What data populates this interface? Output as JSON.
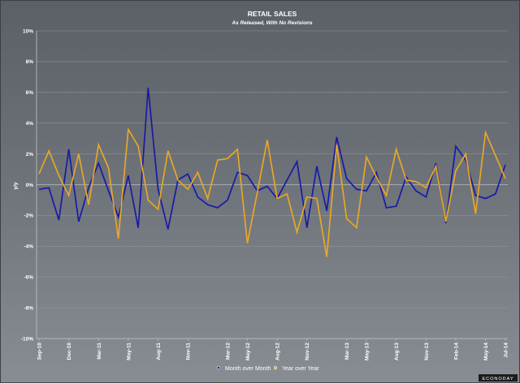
{
  "chart_data": {
    "type": "line",
    "title": "RETAIL SALES",
    "subtitle": "As Released, With No Revisions",
    "ylabel": "y/y",
    "xlabel": "",
    "ylim": [
      -10,
      10
    ],
    "yticks": [
      10,
      8,
      6,
      4,
      2,
      0,
      -2,
      -4,
      -6,
      -8,
      -10
    ],
    "ytick_labels": [
      "10%",
      "8%",
      "6%",
      "4%",
      "2%",
      "0%",
      "-2%",
      "-4%",
      "-6%",
      "-8%",
      "-10%"
    ],
    "x_tick_labels": [
      "Sep-10",
      "Dec-10",
      "Mar-11",
      "May-11",
      "Aug-11",
      "Nov-11",
      "Mar-12",
      "May-12",
      "Aug-12",
      "Nov-12",
      "Mar-13",
      "May-13",
      "Aug-13",
      "Nov-13",
      "Feb-14",
      "May-14",
      "Jul-14"
    ],
    "x_tick_index": [
      0,
      3,
      6,
      9,
      12,
      15,
      19,
      21,
      24,
      27,
      31,
      33,
      36,
      39,
      42,
      45,
      47
    ],
    "x_count": 48,
    "series": [
      {
        "name": "Month over Month",
        "color": "#1a1aa6",
        "values": [
          -0.3,
          -0.2,
          -2.3,
          2.3,
          -2.4,
          -0.2,
          1.4,
          -0.4,
          -2.1,
          0.6,
          -2.8,
          6.3,
          -0.3,
          -2.9,
          0.3,
          0.7,
          -0.8,
          -1.3,
          -1.5,
          -1.0,
          0.8,
          0.6,
          -0.4,
          -0.1,
          -0.9,
          0.3,
          1.5,
          -2.8,
          1.2,
          -1.7,
          3.1,
          0.4,
          -0.3,
          -0.4,
          0.8,
          -1.5,
          -1.4,
          0.5,
          -0.4,
          -0.8,
          1.4,
          -2.5,
          2.5,
          1.6,
          -0.7,
          -0.9,
          -0.6,
          1.3
        ]
      },
      {
        "name": "Year over Year",
        "color": "#e8a628",
        "values": [
          0.7,
          2.2,
          0.6,
          -0.7,
          2.0,
          -1.3,
          2.6,
          1.1,
          -3.5,
          3.6,
          2.5,
          -1.0,
          -1.6,
          2.2,
          0.3,
          -0.3,
          0.8,
          -0.9,
          1.6,
          1.7,
          2.3,
          -3.8,
          -0.5,
          2.9,
          -0.9,
          -0.6,
          -3.1,
          -0.8,
          -0.9,
          -4.7,
          2.6,
          -2.2,
          -2.8,
          1.8,
          0.5,
          -0.7,
          2.3,
          0.3,
          0.2,
          -0.2,
          1.2,
          -2.4,
          0.9,
          2.0,
          -1.9,
          3.4,
          1.9,
          0.4
        ]
      }
    ],
    "legend_position": "bottom-center",
    "grid": true
  },
  "watermark": "ECONODAY"
}
